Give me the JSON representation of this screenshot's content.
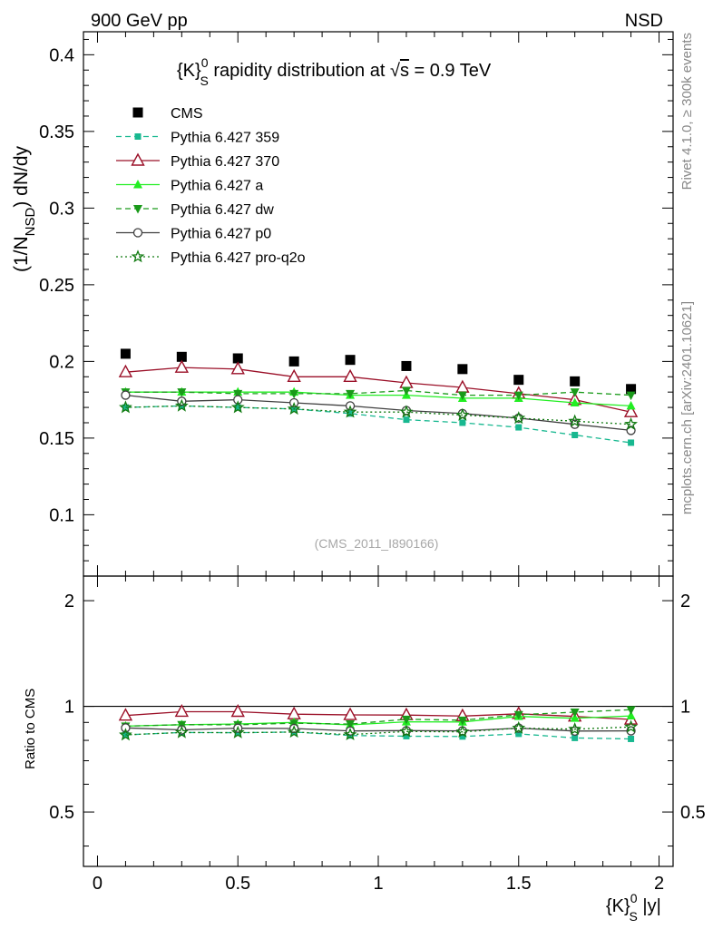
{
  "header": {
    "left": "900 GeV pp",
    "right": "NSD"
  },
  "side_text": {
    "top": "Rivet 4.1.0, ≥ 300k events",
    "bottom": "mcplots.cern.ch [arXiv:2401.10621]"
  },
  "colors": {
    "cms": "#000000",
    "p359": "#18b890",
    "p370": "#9b1028",
    "pa": "#22ee22",
    "pdw": "#1a9a1a",
    "pp0": "#404040",
    "pq2o": "#107a10"
  },
  "chart_data": {
    "type": "line",
    "title": "{K}_S^0 rapidity distribution at √s = 0.9 TeV",
    "title_parts": {
      "k": "{K}",
      "sup": "0",
      "sub": "S",
      "rest": " rapidity distribution at ",
      "sqrt": "√",
      "s": "s",
      "val": " = 0.9 TeV"
    },
    "watermark": "(CMS_2011_I890166)",
    "xlabel": {
      "k": "{K}",
      "sup": "0",
      "sub": "S",
      "rest": " |y|"
    },
    "ylabel": {
      "a": "(1/N",
      "sub": "NSD",
      "b": ") dN/dy"
    },
    "ratio_ylabel": "Ratio to CMS",
    "xlim": [
      -0.05,
      2.05
    ],
    "ylim": [
      0.06,
      0.415
    ],
    "ratio_ylim": [
      0.35,
      2.35
    ],
    "x": [
      0.1,
      0.3,
      0.5,
      0.7,
      0.9,
      1.1,
      1.3,
      1.5,
      1.7,
      1.9
    ],
    "x_ticks": [
      0,
      0.5,
      1,
      1.5,
      2
    ],
    "x_tick_labels": [
      "0",
      "0.5",
      "1",
      "1.5",
      "2"
    ],
    "y_ticks": [
      0.1,
      0.15,
      0.2,
      0.25,
      0.3,
      0.35,
      0.4
    ],
    "y_tick_labels": [
      "0.1",
      "0.15",
      "0.2",
      "0.25",
      "0.3",
      "0.35",
      "0.4"
    ],
    "ratio_ticks": [
      0.5,
      1,
      2
    ],
    "ratio_tick_labels": [
      "0.5",
      "1",
      "2"
    ],
    "series": [
      {
        "name": "CMS",
        "key": "cms",
        "marker": "square",
        "line": "none",
        "values": [
          0.205,
          0.203,
          0.202,
          0.2,
          0.201,
          0.197,
          0.195,
          0.188,
          0.187,
          0.182
        ]
      },
      {
        "name": "Pythia 6.427 359",
        "key": "p359",
        "marker": "smallsquare",
        "line": "dashed",
        "values": [
          0.17,
          0.171,
          0.17,
          0.169,
          0.166,
          0.162,
          0.16,
          0.157,
          0.152,
          0.147
        ]
      },
      {
        "name": "Pythia 6.427 370",
        "key": "p370",
        "marker": "opentriangle",
        "line": "solid",
        "values": [
          0.193,
          0.196,
          0.195,
          0.19,
          0.19,
          0.186,
          0.183,
          0.179,
          0.175,
          0.167
        ]
      },
      {
        "name": "Pythia 6.427 a",
        "key": "pa",
        "marker": "triangle",
        "line": "solid",
        "values": [
          0.18,
          0.18,
          0.18,
          0.18,
          0.178,
          0.178,
          0.176,
          0.176,
          0.173,
          0.171
        ]
      },
      {
        "name": "Pythia 6.427 dw",
        "key": "pdw",
        "marker": "downtriangle",
        "line": "dashed",
        "values": [
          0.18,
          0.18,
          0.179,
          0.179,
          0.179,
          0.181,
          0.178,
          0.178,
          0.18,
          0.178
        ]
      },
      {
        "name": "Pythia 6.427 p0",
        "key": "pp0",
        "marker": "opencircle",
        "line": "solid",
        "values": [
          0.178,
          0.174,
          0.175,
          0.173,
          0.171,
          0.168,
          0.166,
          0.163,
          0.159,
          0.155
        ]
      },
      {
        "name": "Pythia 6.427 pro-q2o",
        "key": "pq2o",
        "marker": "star",
        "line": "dotted",
        "values": [
          0.17,
          0.171,
          0.17,
          0.169,
          0.167,
          0.167,
          0.165,
          0.163,
          0.161,
          0.159
        ]
      }
    ]
  }
}
